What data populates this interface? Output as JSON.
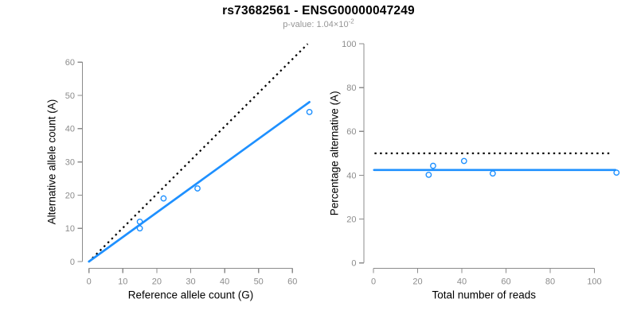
{
  "header": {
    "title": "rs73682561 - ENSG00000047249",
    "subtitle_text": "p-value: 1.04×10",
    "subtitle_exponent": "-2"
  },
  "colors": {
    "accent_blue": "#1E90FF",
    "axis_gray": "#8C8C8C",
    "tick_label_gray": "#8C8C8C",
    "axis_title_black": "#000000",
    "dotted_line_black": "#000000",
    "subtitle_gray": "#969696",
    "background": "#FFFFFF"
  },
  "chart_data": [
    {
      "name": "allele-counts",
      "type": "scatter",
      "xlabel": "Reference allele count (G)",
      "ylabel": "Alternative allele count (A)",
      "x_ticks": [
        0,
        10,
        20,
        30,
        40,
        50,
        60
      ],
      "y_ticks": [
        0,
        10,
        20,
        30,
        40,
        50,
        60
      ],
      "xlim": [
        0,
        65
      ],
      "ylim": [
        0,
        65
      ],
      "grid": false,
      "legend": null,
      "points": [
        [
          15,
          10
        ],
        [
          15,
          12
        ],
        [
          22,
          19
        ],
        [
          32,
          22
        ],
        [
          65,
          45
        ]
      ],
      "dotted_reference_line": {
        "from": [
          1,
          1
        ],
        "to": [
          64.5,
          65.5
        ]
      },
      "fit_line": {
        "from": [
          0,
          0
        ],
        "to": [
          65,
          48
        ]
      }
    },
    {
      "name": "percentage-vs-coverage",
      "type": "scatter",
      "xlabel": "Total number of reads",
      "ylabel": "Percentage alternative (A)",
      "x_ticks": [
        0,
        20,
        40,
        60,
        80,
        100
      ],
      "y_ticks": [
        0,
        20,
        40,
        60,
        80,
        100
      ],
      "xlim": [
        0,
        110
      ],
      "ylim": [
        0,
        100
      ],
      "grid": false,
      "legend": null,
      "points": [
        [
          25,
          40.2
        ],
        [
          27,
          44.3
        ],
        [
          41,
          46.5
        ],
        [
          54,
          40.8
        ],
        [
          110,
          41.2
        ]
      ],
      "dotted_reference_line": {
        "from": [
          0.5,
          50
        ],
        "to": [
          107.5,
          50
        ]
      },
      "fit_line": {
        "from": [
          0.3,
          42.4
        ],
        "to": [
          109.5,
          42.4
        ]
      }
    }
  ]
}
